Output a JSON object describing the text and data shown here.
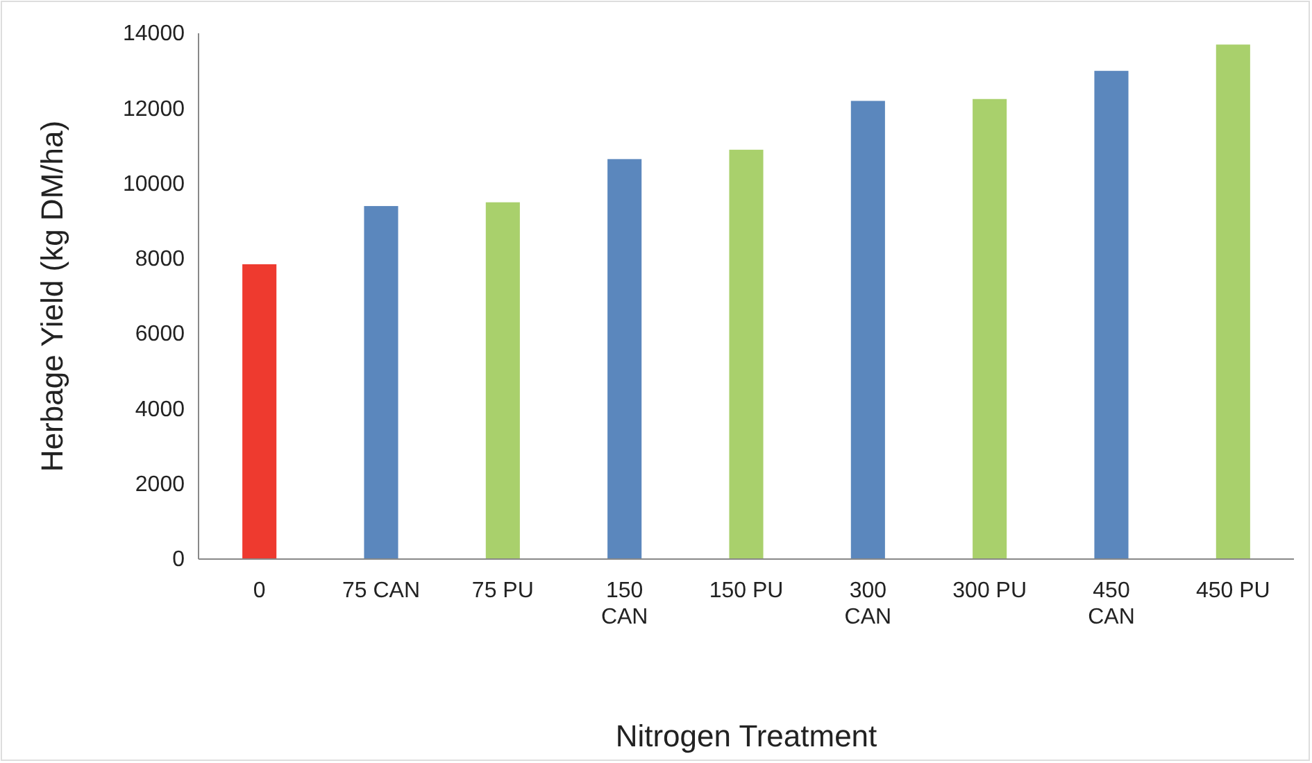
{
  "chart_data": {
    "type": "bar",
    "xlabel": "Nitrogen Treatment",
    "ylabel": "Herbage Yield (kg DM/ha)",
    "categories": [
      "0",
      "75 CAN",
      "75 PU",
      "150 CAN",
      "150 PU",
      "300 CAN",
      "300 PU",
      "450 CAN",
      "450 PU"
    ],
    "values": [
      7850,
      9400,
      9500,
      10650,
      10900,
      12200,
      12250,
      13000,
      13700
    ],
    "colors": [
      "#ee3a2f",
      "#5b87bd",
      "#a9d06c",
      "#5b87bd",
      "#a9d06c",
      "#5b87bd",
      "#a9d06c",
      "#5b87bd",
      "#a9d06c"
    ],
    "ylim": [
      0,
      14000
    ],
    "yticks": [
      0,
      2000,
      4000,
      6000,
      8000,
      10000,
      12000,
      14000
    ],
    "grid": false
  }
}
